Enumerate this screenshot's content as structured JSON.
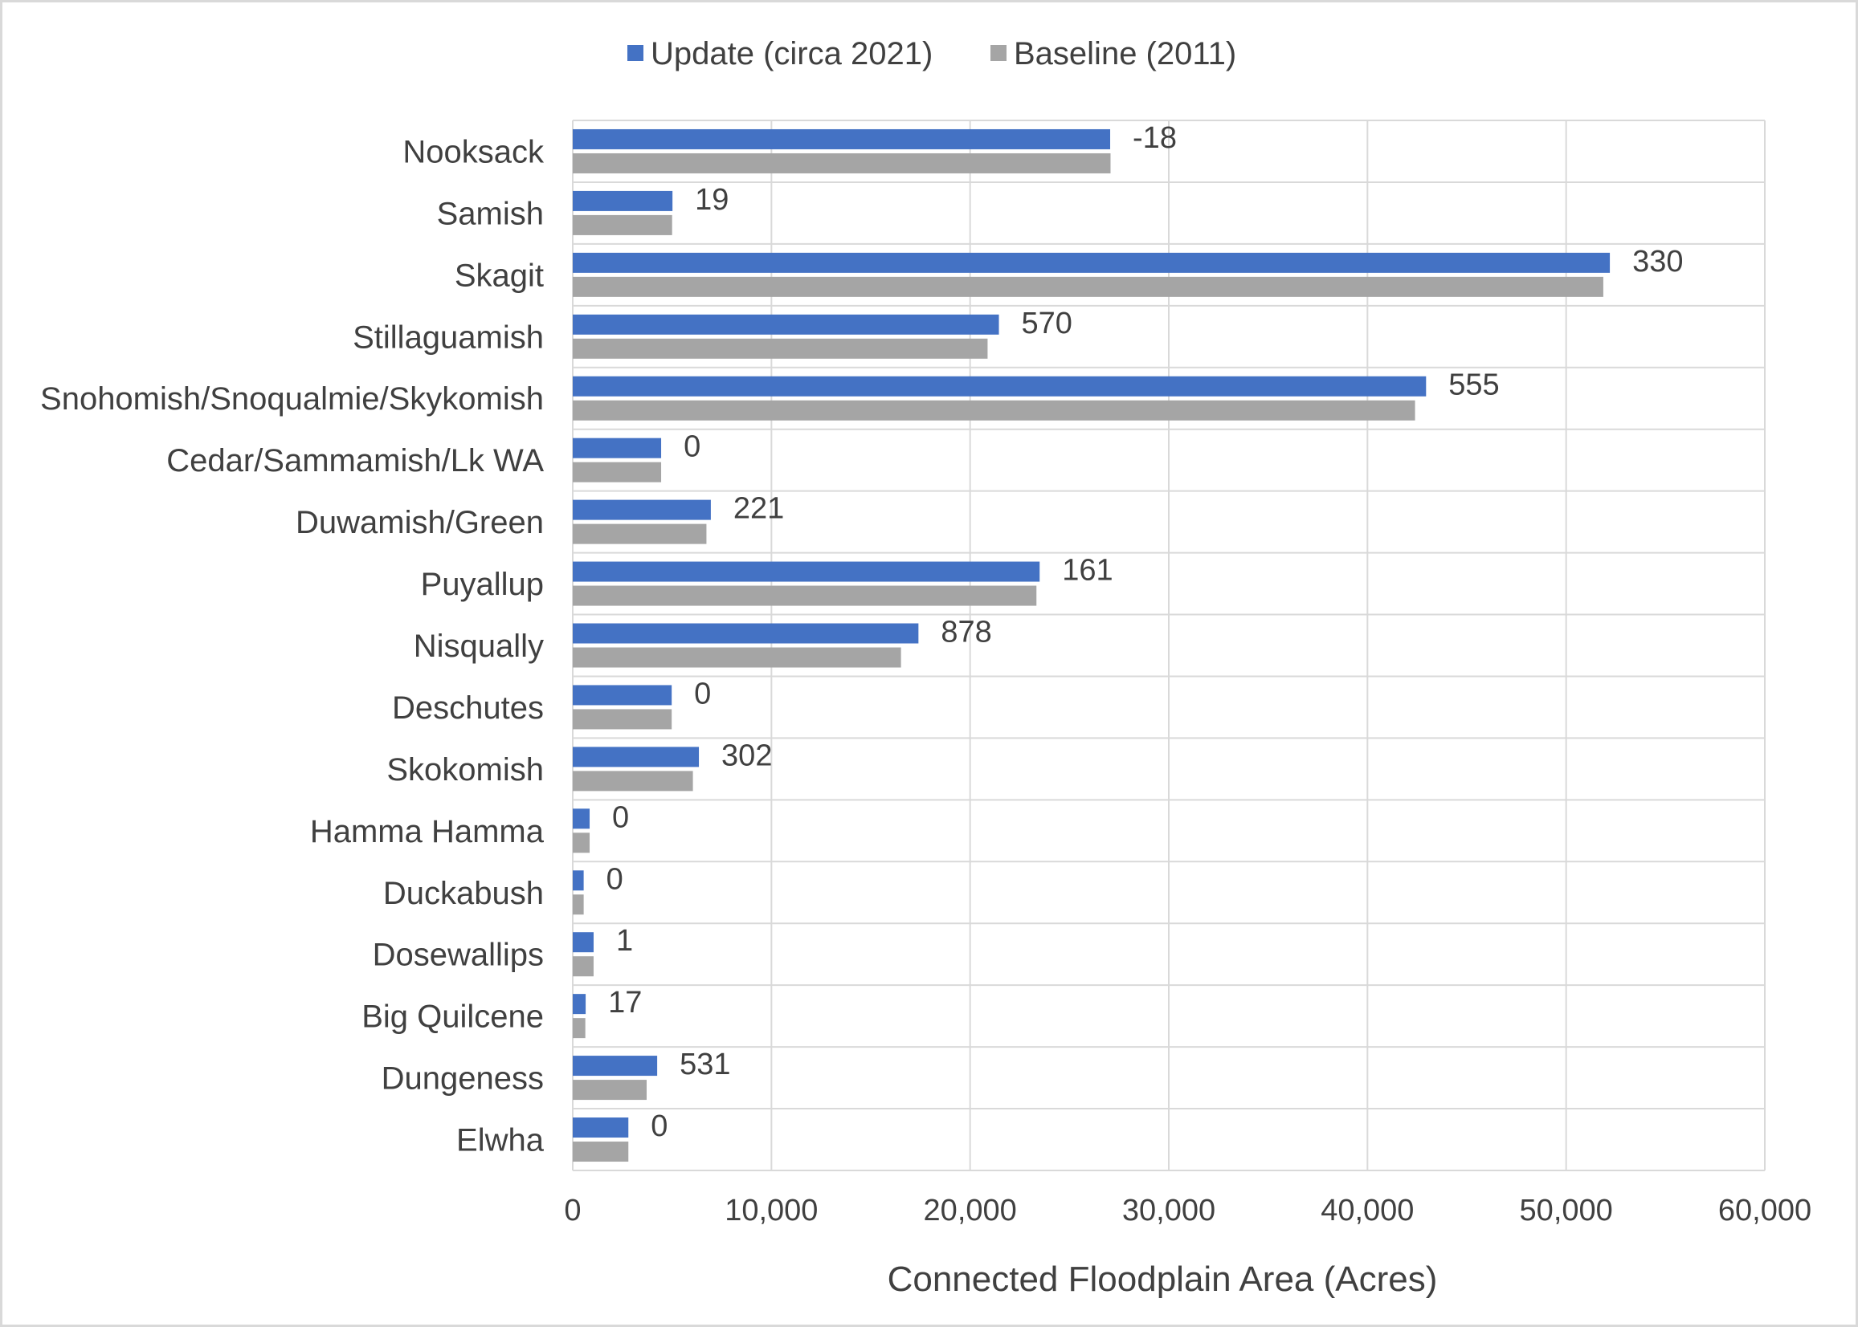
{
  "chart_data": {
    "type": "bar",
    "orientation": "horizontal",
    "categories": [
      "Nooksack",
      "Samish",
      "Skagit",
      "Stillaguamish",
      "Snohomish/Snoqualmie/Skykomish",
      "Cedar/Sammamish/Lk WA",
      "Duwamish/Green",
      "Puyallup",
      "Nisqually",
      "Deschutes",
      "Skokomish",
      "Hamma Hamma",
      "Duckabush",
      "Dosewallips",
      "Big Quilcene",
      "Dungeness",
      "Elwha"
    ],
    "series": [
      {
        "name": "Update (circa 2021)",
        "color": "#4472C4",
        "values": [
          27050,
          5020,
          52200,
          21450,
          42950,
          4450,
          6950,
          23500,
          17400,
          4980,
          6350,
          850,
          550,
          1050,
          650,
          4250,
          2800
        ]
      },
      {
        "name": "Baseline (2011)",
        "color": "#A5A5A5",
        "values": [
          27068,
          5001,
          51870,
          20880,
          42395,
          4450,
          6729,
          23339,
          16522,
          4980,
          6048,
          850,
          550,
          1049,
          633,
          3719,
          2800
        ]
      }
    ],
    "data_labels": [
      "-18",
      "19",
      "330",
      "570",
      "555",
      "0",
      "221",
      "161",
      "878",
      "0",
      "302",
      "0",
      "0",
      "1",
      "17",
      "531",
      "0"
    ],
    "x_ticks": [
      "0",
      "10,000",
      "20,000",
      "30,000",
      "40,000",
      "50,000",
      "60,000"
    ],
    "xlim": [
      0,
      60000
    ],
    "xlabel": "Connected Floodplain Area (Acres)",
    "ylabel": "",
    "title": "",
    "grid": true,
    "legend_position": "top-center"
  }
}
